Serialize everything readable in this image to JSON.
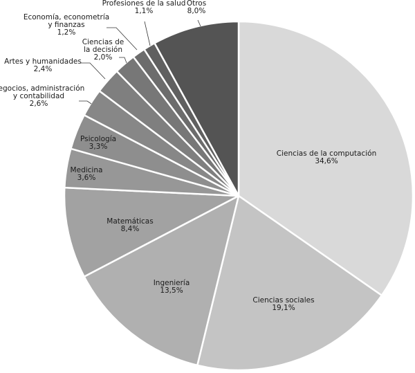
{
  "chart_data": {
    "type": "pie",
    "title": "",
    "slices": [
      {
        "label_lines": [
          "Ciencias de la computación"
        ],
        "value_text": "34,6%",
        "value": 34.6,
        "color": "#d9d9d9"
      },
      {
        "label_lines": [
          "Ciencias sociales"
        ],
        "value_text": "19,1%",
        "value": 19.1,
        "color": "#c4c4c4"
      },
      {
        "label_lines": [
          "Ingeniería"
        ],
        "value_text": "13,5%",
        "value": 13.5,
        "color": "#b0b0b0"
      },
      {
        "label_lines": [
          "Matemáticas"
        ],
        "value_text": "8,4%",
        "value": 8.4,
        "color": "#a2a2a2"
      },
      {
        "label_lines": [
          "Medicina"
        ],
        "value_text": "3,6%",
        "value": 3.6,
        "color": "#979797"
      },
      {
        "label_lines": [
          "Psicología"
        ],
        "value_text": "3,3%",
        "value": 3.3,
        "color": "#8e8e8e"
      },
      {
        "label_lines": [
          "Negocios, administración",
          "y contabilidad"
        ],
        "value_text": "2,6%",
        "value": 2.6,
        "color": "#878787"
      },
      {
        "label_lines": [
          "Artes y humanidades"
        ],
        "value_text": "2,4%",
        "value": 2.4,
        "color": "#7f7f7f"
      },
      {
        "label_lines": [
          "Ciencias de",
          "la decisión"
        ],
        "value_text": "2,0%",
        "value": 2.0,
        "color": "#777777"
      },
      {
        "label_lines": [
          "Economía, econometría",
          "y finanzas"
        ],
        "value_text": "1,2%",
        "value": 1.2,
        "color": "#6c6c6c"
      },
      {
        "label_lines": [
          "Profesiones de la salud"
        ],
        "value_text": "1,1%",
        "value": 1.1,
        "color": "#606060"
      },
      {
        "label_lines": [
          "Otros"
        ],
        "value_text": "8,0%",
        "value": 8.0,
        "color": "#545454"
      }
    ]
  }
}
